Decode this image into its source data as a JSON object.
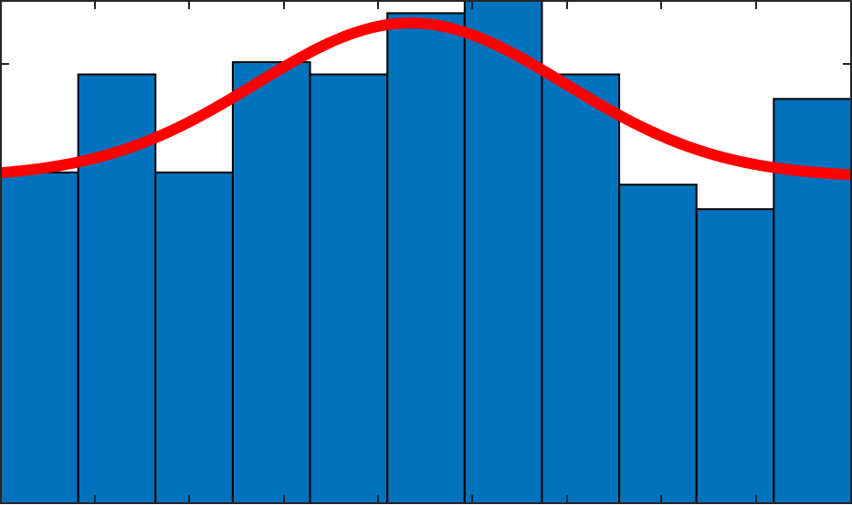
{
  "chart_data": {
    "type": "bar",
    "title": "",
    "xlabel": "",
    "ylabel": "",
    "grid": false,
    "legend": "none",
    "tick_labels_shown": false,
    "ylim": [
      0,
      41
    ],
    "series": [
      {
        "kind": "histogram",
        "bin_edges": [
          0,
          1,
          2,
          3,
          4,
          5,
          6,
          7,
          8,
          9,
          10,
          11
        ],
        "values": [
          27,
          35,
          27,
          36,
          35,
          40,
          41,
          35,
          26,
          24,
          33
        ],
        "color": "#0072BD",
        "edge_color": "#000000"
      },
      {
        "kind": "fit-curve",
        "shape": "gaussian",
        "baseline": 26.6,
        "peak": 39.2,
        "center": 5.3,
        "sigma": 2.0,
        "color": "#FF0000"
      }
    ]
  }
}
